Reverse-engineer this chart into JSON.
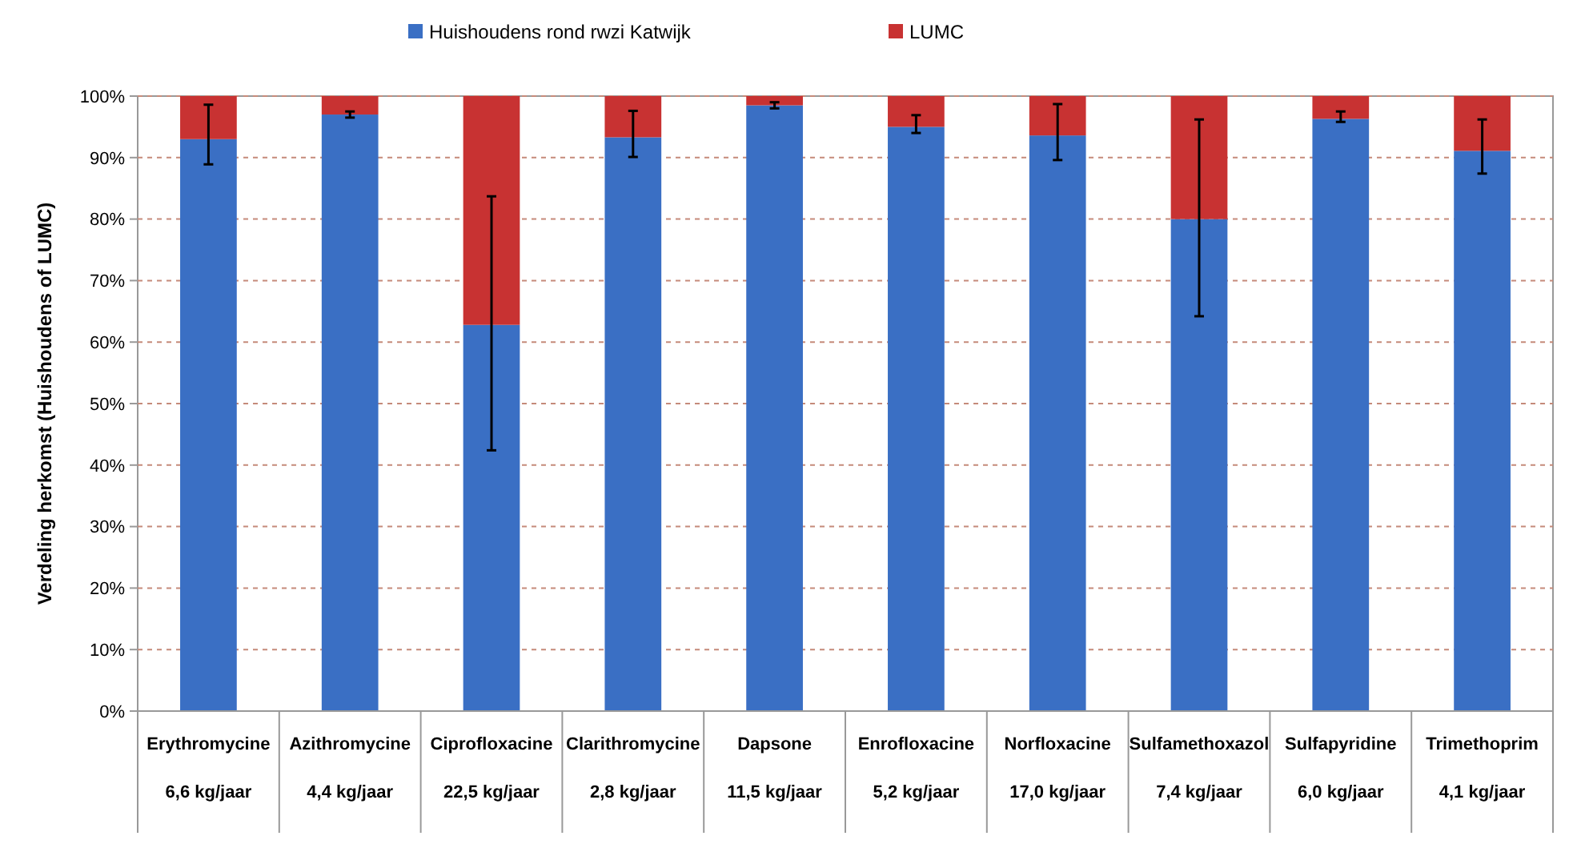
{
  "chart_data": {
    "type": "bar",
    "stacked": true,
    "ylabel": "Verdeling herkomst (Huishoudens of LUMC)",
    "categories": [
      "Erythromycine\n6,6 kg/jaar",
      "Azithromycine\n4,4 kg/jaar",
      "Ciprofloxacine\n22,5 kg/jaar",
      "Clarithromycine\n2,8 kg/jaar",
      "Dapsone\n11,5 kg/jaar",
      "Enrofloxacine\n5,2 kg/jaar",
      "Norfloxacine\n17,0 kg/jaar",
      "Sulfamethoxazol\n7,4 kg/jaar",
      "Sulfapyridine\n6,0 kg/jaar",
      "Trimethoprim\n4,1 kg/jaar"
    ],
    "series": [
      {
        "name": "Huishoudens rond rwzi Katwijk",
        "color": "#3a6fc4",
        "values": [
          93,
          97,
          62.8,
          93.3,
          98.5,
          95,
          93.6,
          80,
          96.3,
          91.1
        ],
        "errors": [
          [
            88.9,
            98.6
          ],
          [
            96.5,
            97.5
          ],
          [
            42.4,
            83.7
          ],
          [
            90.1,
            97.6
          ],
          [
            98,
            99
          ],
          [
            94,
            96.9
          ],
          [
            89.6,
            98.7
          ],
          [
            64.2,
            96.2
          ],
          [
            95.8,
            97.5
          ],
          [
            87.4,
            96.2
          ]
        ]
      },
      {
        "name": "LUMC",
        "color": "#c83232",
        "values": [
          7,
          3,
          37.2,
          6.7,
          1.5,
          5,
          6.4,
          20,
          3.7,
          8.9
        ]
      }
    ],
    "ylim": [
      0,
      100
    ],
    "yticks": [
      {
        "value": 0,
        "label": "0%"
      },
      {
        "value": 10,
        "label": "10%"
      },
      {
        "value": 20,
        "label": "20%"
      },
      {
        "value": 30,
        "label": "30%"
      },
      {
        "value": 40,
        "label": "40%"
      },
      {
        "value": 50,
        "label": "50%"
      },
      {
        "value": 60,
        "label": "60%"
      },
      {
        "value": 70,
        "label": "70%"
      },
      {
        "value": 80,
        "label": "80%"
      },
      {
        "value": 90,
        "label": "90%"
      },
      {
        "value": 100,
        "label": "100%"
      }
    ],
    "grid": "y",
    "legend": "top"
  }
}
